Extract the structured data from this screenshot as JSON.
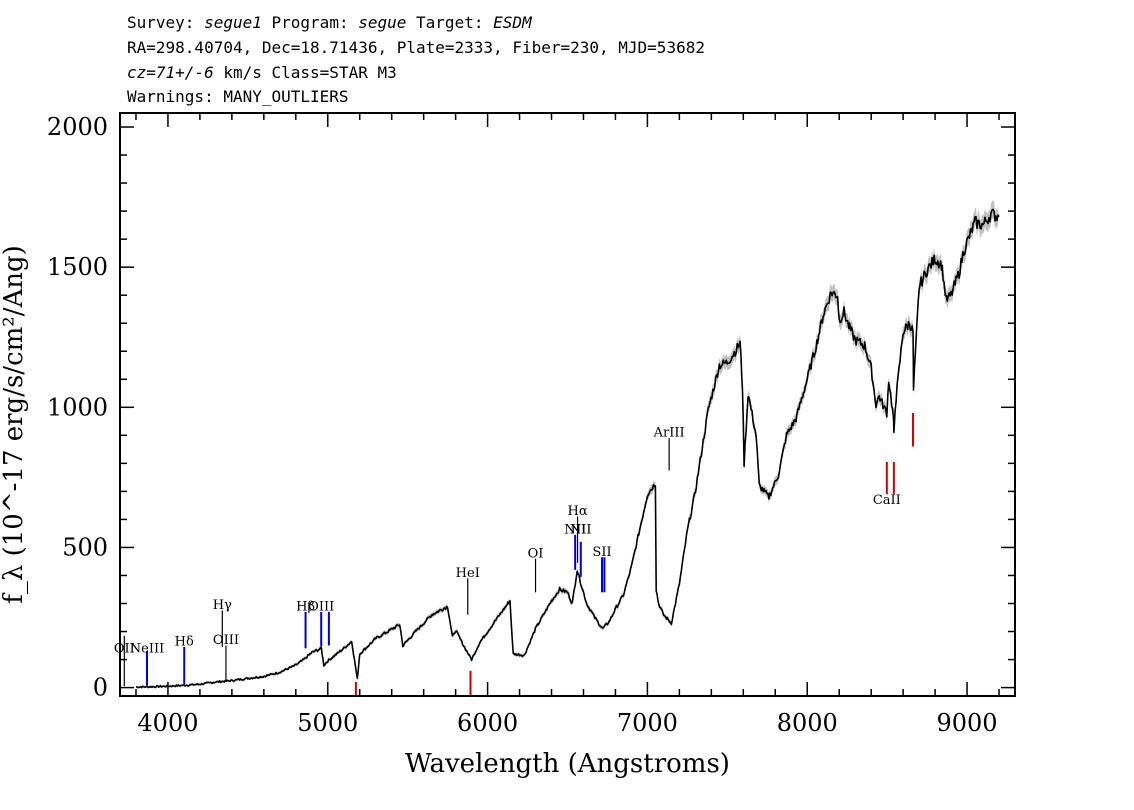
{
  "header": {
    "survey_key": "Survey:",
    "survey": "segue1",
    "program_key": "Program:",
    "program": "segue",
    "target_key": "Target:",
    "target": "ESDM",
    "line2": "RA=298.40704, Dec=18.71436, Plate=2333, Fiber=230, MJD=53682",
    "cz_key": "cz=71+/-6",
    "cz_rest": "km/s Class=STAR M3",
    "line4": "Warnings: MANY_OUTLIERS"
  },
  "chart_data": {
    "type": "line",
    "xlabel": "Wavelength (Angstroms)",
    "ylabel": "f_λ (10^-17 erg/s/cm²/Ang)",
    "xlim": [
      3700,
      9300
    ],
    "ylim": [
      -30,
      2050
    ],
    "x_ticks": [
      4000,
      5000,
      6000,
      7000,
      8000,
      9000
    ],
    "y_ticks": [
      0,
      500,
      1000,
      1500,
      2000
    ],
    "colors": {
      "spectrum": "#000000",
      "error_band": "#b0b0b0",
      "emission": "#0000cc",
      "absorption": "#cc0000",
      "neutral": "#000000"
    },
    "series": [
      {
        "x": [
          3800,
          3900,
          4000,
          4100,
          4200,
          4300,
          4400,
          4500,
          4600,
          4700,
          4800,
          4850,
          4900,
          4960,
          4975,
          5000,
          5100,
          5150,
          5185,
          5200,
          5300,
          5450,
          5470,
          5550,
          5650,
          5750,
          5780,
          5800,
          5850,
          5900,
          5950,
          6050,
          6140,
          6160,
          6230,
          6300,
          6400,
          6450,
          6500,
          6530,
          6560,
          6580,
          6620,
          6670,
          6720,
          6760,
          6800,
          6850,
          6900,
          7000,
          7050,
          7055,
          7070,
          7100,
          7150,
          7200,
          7250,
          7300,
          7380,
          7450,
          7500,
          7550,
          7580,
          7595,
          7605,
          7630,
          7680,
          7700,
          7760,
          7820,
          7870,
          7930,
          8000,
          8060,
          8100,
          8150,
          8190,
          8200,
          8230,
          8260,
          8300,
          8360,
          8400,
          8430,
          8450,
          8480,
          8498,
          8510,
          8540,
          8542,
          8550,
          8600,
          8640,
          8662,
          8665,
          8700,
          8750,
          8800,
          8840,
          8850,
          8870,
          8900,
          8950,
          8980,
          9050,
          9100,
          9150,
          9200
        ],
        "y": [
          2,
          3,
          5,
          8,
          12,
          20,
          25,
          33,
          40,
          55,
          80,
          100,
          125,
          140,
          80,
          95,
          140,
          165,
          30,
          120,
          175,
          225,
          150,
          200,
          260,
          290,
          180,
          205,
          150,
          100,
          160,
          240,
          310,
          120,
          115,
          210,
          310,
          350,
          340,
          300,
          420,
          380,
          300,
          250,
          210,
          235,
          280,
          330,
          430,
          690,
          730,
          350,
          300,
          260,
          230,
          370,
          560,
          700,
          990,
          1150,
          1160,
          1200,
          1230,
          1070,
          800,
          1050,
          900,
          720,
          680,
          760,
          900,
          960,
          1100,
          1230,
          1330,
          1410,
          1400,
          1310,
          1340,
          1290,
          1240,
          1220,
          1140,
          1010,
          1040,
          1000,
          980,
          1100,
          960,
          900,
          1000,
          1270,
          1300,
          1270,
          1060,
          1430,
          1490,
          1530,
          1510,
          1470,
          1380,
          1400,
          1480,
          1560,
          1660,
          1650,
          1690,
          1680
        ]
      }
    ],
    "line_markers": [
      {
        "label": "OII",
        "wavelength": 3727,
        "kind": "neutral",
        "ymin": 5,
        "ymax": 185,
        "label_y": 125
      },
      {
        "label": "NeIII",
        "wavelength": 3869,
        "kind": "emission",
        "ymin": 5,
        "ymax": 130,
        "label_y": 125
      },
      {
        "label": "Hδ",
        "wavelength": 4102,
        "kind": "emission",
        "ymin": 10,
        "ymax": 145,
        "label_y": 150
      },
      {
        "label": "Hγ",
        "wavelength": 4340,
        "kind": "neutral",
        "ymin": 145,
        "ymax": 275,
        "label_y": 280
      },
      {
        "label": "OIII",
        "wavelength": 4363,
        "kind": "neutral",
        "ymin": 25,
        "ymax": 150,
        "label_y": 155
      },
      {
        "label": "Hβ",
        "wavelength": 4861,
        "kind": "emission",
        "ymin": 140,
        "ymax": 270,
        "label_y": 275
      },
      {
        "label": "OIII",
        "wavelength": 4959,
        "kind": "emission",
        "ymin": 145,
        "ymax": 270,
        "label_y": 275
      },
      {
        "label": "",
        "wavelength": 5007,
        "kind": "emission",
        "ymin": 150,
        "ymax": 270,
        "label_y": 0
      },
      {
        "label": "",
        "wavelength": 5176,
        "kind": "absorption",
        "ymin": -30,
        "ymax": 20,
        "label_y": 0
      },
      {
        "label": "HeI",
        "wavelength": 5876,
        "kind": "neutral",
        "ymin": 260,
        "ymax": 390,
        "label_y": 395
      },
      {
        "label": "",
        "wavelength": 5893,
        "kind": "absorption",
        "ymin": -30,
        "ymax": 60,
        "label_y": 0
      },
      {
        "label": "OI",
        "wavelength": 6300,
        "kind": "neutral",
        "ymin": 340,
        "ymax": 460,
        "label_y": 465
      },
      {
        "label": "NII",
        "wavelength": 6548,
        "kind": "emission",
        "ymin": 420,
        "ymax": 545,
        "label_y": 550
      },
      {
        "label": "Hα",
        "wavelength": 6563,
        "kind": "neutral",
        "ymin": 445,
        "ymax": 610,
        "label_y": 615
      },
      {
        "label": "NII",
        "wavelength": 6583,
        "kind": "emission",
        "ymin": 395,
        "ymax": 520,
        "label_y": 550
      },
      {
        "label": "SII",
        "wavelength": 6716,
        "kind": "emission",
        "ymin": 340,
        "ymax": 465,
        "label_y": 470
      },
      {
        "label": "",
        "wavelength": 6731,
        "kind": "emission",
        "ymin": 340,
        "ymax": 465,
        "label_y": 0
      },
      {
        "label": "ArIII",
        "wavelength": 7136,
        "kind": "neutral",
        "ymin": 775,
        "ymax": 890,
        "label_y": 895
      },
      {
        "label": "CaII",
        "wavelength": 8498,
        "kind": "absorption",
        "ymin": 690,
        "ymax": 805,
        "label_y": 655
      },
      {
        "label": "",
        "wavelength": 8542,
        "kind": "absorption",
        "ymin": 690,
        "ymax": 805,
        "label_y": 0
      },
      {
        "label": "",
        "wavelength": 8662,
        "kind": "absorption",
        "ymin": 860,
        "ymax": 980,
        "label_y": 0
      }
    ]
  }
}
